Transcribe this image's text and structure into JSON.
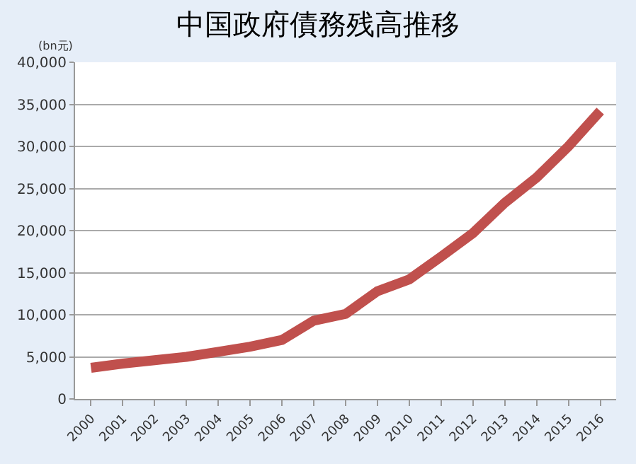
{
  "chart_data": {
    "type": "line",
    "title": "中国政府債務残高推移",
    "ylabel": "(bn元)",
    "categories": [
      "2000",
      "2001",
      "2002",
      "2003",
      "2004",
      "2005",
      "2006",
      "2007",
      "2008",
      "2009",
      "2010",
      "2011",
      "2012",
      "2013",
      "2014",
      "2015",
      "2016"
    ],
    "series": [
      {
        "color": "#c0504d",
        "values": [
          3700,
          4200,
          4600,
          5000,
          5600,
          6200,
          7000,
          9300,
          10100,
          12800,
          14200,
          16900,
          19700,
          23300,
          26300,
          30000,
          34200
        ]
      }
    ],
    "ylim": [
      0,
      40000
    ],
    "yticks": [
      {
        "value": 0,
        "label": "0"
      },
      {
        "value": 5000,
        "label": "5,000"
      },
      {
        "value": 10000,
        "label": "10,000"
      },
      {
        "value": 15000,
        "label": "15,000"
      },
      {
        "value": 20000,
        "label": "20,000"
      },
      {
        "value": 25000,
        "label": "25,000"
      },
      {
        "value": 30000,
        "label": "30,000"
      },
      {
        "value": 35000,
        "label": "35,000"
      },
      {
        "value": 40000,
        "label": "40,000"
      }
    ],
    "grid": "y",
    "marker": "none",
    "line_style": "solid"
  }
}
